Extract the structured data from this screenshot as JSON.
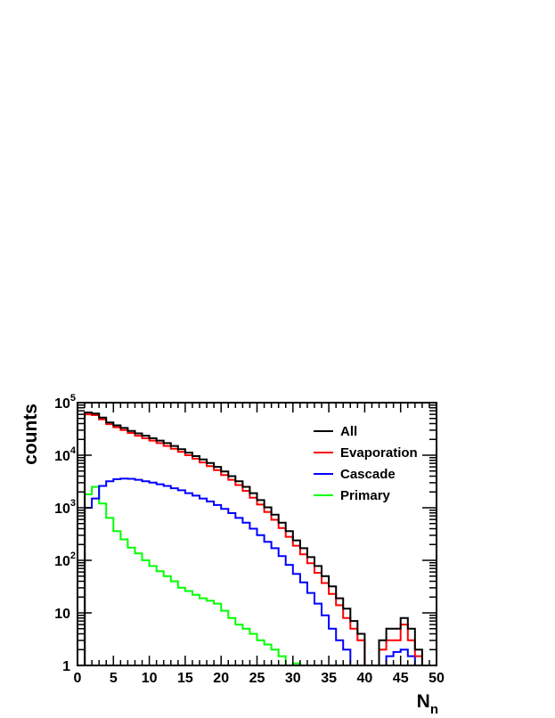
{
  "chart_data": {
    "type": "line",
    "style": "histogram-step",
    "x_axis": {
      "label": "N",
      "label_subscript": "n",
      "range": [
        0,
        50
      ],
      "ticks": [
        0,
        5,
        10,
        15,
        20,
        25,
        30,
        35,
        40,
        45,
        50
      ]
    },
    "y_axis": {
      "label": "counts",
      "scale": "log",
      "range": [
        1,
        100000
      ],
      "ticks": [
        {
          "value": 1,
          "base": "1",
          "exp": ""
        },
        {
          "value": 10,
          "base": "10",
          "exp": ""
        },
        {
          "value": 100,
          "base": "10",
          "exp": "2"
        },
        {
          "value": 1000,
          "base": "10",
          "exp": "3"
        },
        {
          "value": 10000,
          "base": "10",
          "exp": "4"
        },
        {
          "value": 100000,
          "base": "10",
          "exp": "5"
        }
      ]
    },
    "legend_position": "top-right",
    "grid": false,
    "bin_edges_start": 0,
    "bin_width": 1,
    "series": [
      {
        "name": "All",
        "color": "#000000",
        "values": [
          0,
          65000,
          62000,
          52000,
          42000,
          37000,
          33000,
          29000,
          26000,
          23500,
          21000,
          19000,
          17000,
          15000,
          13000,
          11200,
          9600,
          8300,
          7100,
          6000,
          4900,
          4000,
          3200,
          2500,
          1900,
          1400,
          1020,
          740,
          520,
          360,
          240,
          170,
          115,
          78,
          50,
          32,
          19,
          12,
          7,
          4,
          1,
          1,
          3,
          5,
          5,
          8,
          5,
          2,
          1,
          1
        ]
      },
      {
        "name": "Evaporation",
        "color": "#ff0000",
        "values": [
          0,
          60000,
          58000,
          48000,
          39000,
          34000,
          30000,
          26500,
          23500,
          21000,
          19000,
          17000,
          15000,
          13300,
          11600,
          10000,
          8600,
          7300,
          6200,
          5200,
          4200,
          3400,
          2700,
          2100,
          1550,
          1150,
          830,
          590,
          410,
          280,
          190,
          130,
          88,
          58,
          37,
          23,
          14,
          8,
          5,
          3,
          1,
          1,
          2,
          3,
          3,
          6,
          3,
          1.5,
          1,
          1
        ]
      },
      {
        "name": "Cascade",
        "color": "#0000ff",
        "values": [
          0,
          1000,
          1500,
          2600,
          3200,
          3500,
          3600,
          3550,
          3400,
          3200,
          3000,
          2800,
          2600,
          2350,
          2150,
          1900,
          1700,
          1500,
          1320,
          1130,
          950,
          790,
          640,
          520,
          400,
          300,
          225,
          170,
          120,
          82,
          55,
          38,
          24,
          15,
          9,
          5,
          3,
          2,
          1,
          1,
          1,
          1,
          1,
          1.5,
          1.8,
          2,
          1.5,
          1,
          1,
          1
        ]
      },
      {
        "name": "Primary",
        "color": "#00ff00",
        "values": [
          0,
          1800,
          2500,
          1200,
          640,
          360,
          250,
          175,
          135,
          100,
          78,
          62,
          50,
          40,
          30,
          26,
          22,
          19,
          17,
          15,
          11,
          8,
          6,
          5,
          4,
          3,
          2.5,
          2,
          1.5,
          1,
          1.1,
          1,
          1,
          1,
          1,
          1,
          1,
          1,
          1,
          1,
          1,
          1,
          1,
          1,
          1,
          1,
          1,
          1,
          1,
          1
        ]
      }
    ]
  }
}
